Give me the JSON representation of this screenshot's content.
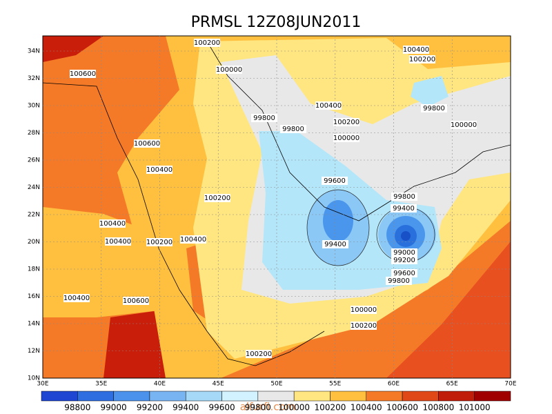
{
  "title": "PRMSL 12Z08JUN2011",
  "lat_labels": [
    "34N",
    "32N",
    "30N",
    "28N",
    "26N",
    "24N",
    "22N",
    "20N",
    "18N",
    "16N",
    "14N",
    "12N",
    "10N"
  ],
  "lon_labels": [
    "30E",
    "35E",
    "40E",
    "45E",
    "50E",
    "55E",
    "60E",
    "65E",
    "70E"
  ],
  "colorbar_labels": [
    "98800",
    "99000",
    "99200",
    "99400",
    "99600",
    "99800",
    "100000",
    "100200",
    "100400",
    "100600",
    "100800",
    "101000"
  ],
  "contour_labels": [
    "100200",
    "100400",
    "100200",
    "100600",
    "100000",
    "100400",
    "99800",
    "99800",
    "100200",
    "100000",
    "99800",
    "100000",
    "100600",
    "100400",
    "99600",
    "99800",
    "100200",
    "99400",
    "100400",
    "100400",
    "100200",
    "100400",
    "99400",
    "99000",
    "99200",
    "99600",
    "99800",
    "100400",
    "100600",
    "100000",
    "100200",
    "100200"
  ],
  "watermark": "alfurfi.com"
}
